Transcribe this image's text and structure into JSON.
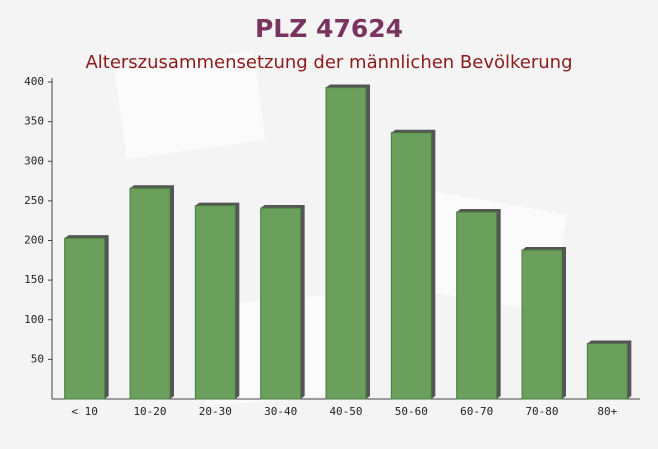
{
  "chart_data": {
    "type": "bar",
    "title": "PLZ 47624",
    "subtitle": "Alterszusammensetzung der männlichen Bevölkerung",
    "categories": [
      "< 10",
      "10-20",
      "20-30",
      "30-40",
      "40-50",
      "50-60",
      "60-70",
      "70-80",
      "80+"
    ],
    "values": [
      203,
      266,
      244,
      241,
      393,
      336,
      236,
      188,
      70
    ],
    "color": "#6a9f5c",
    "ylim": [
      0,
      400
    ],
    "yticks": [
      50,
      100,
      150,
      200,
      250,
      300,
      350,
      400
    ],
    "grid": false
  }
}
